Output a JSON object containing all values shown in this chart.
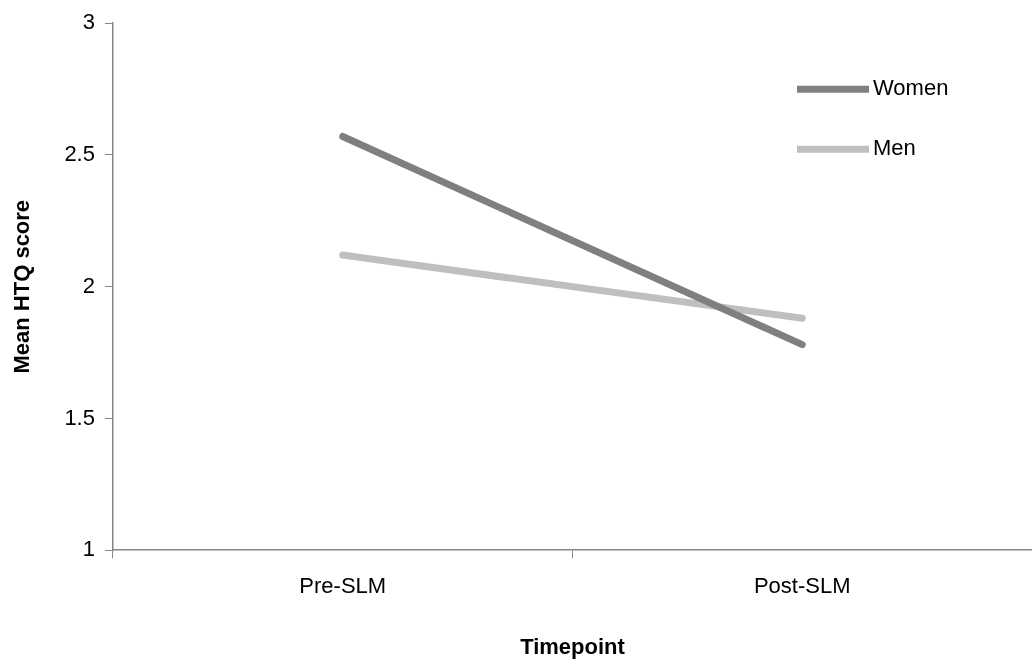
{
  "chart_data": {
    "type": "line",
    "xlabel": "Timepoint",
    "ylabel": "Mean HTQ score",
    "categories": [
      "Pre-SLM",
      "Post-SLM"
    ],
    "series": [
      {
        "name": "Women",
        "color": "#7f7f7f",
        "values": [
          2.57,
          1.78
        ]
      },
      {
        "name": "Men",
        "color": "#bfbfbf",
        "values": [
          2.12,
          1.88
        ]
      }
    ],
    "ylim": [
      1,
      3
    ],
    "yticks": [
      1,
      1.5,
      2,
      2.5,
      3
    ],
    "grid": false,
    "legend": "top right",
    "marker": "none",
    "line_style": "solid"
  }
}
